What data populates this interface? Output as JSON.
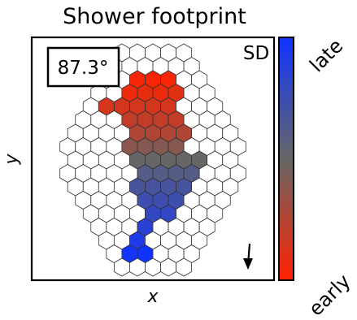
{
  "chart_data": {
    "type": "heatmap",
    "title": "Shower footprint",
    "xlabel": "x",
    "ylabel": "y",
    "detector_label": "SD",
    "zenith_angle": "87.3°",
    "arrow_icon": "down-arrow-icon",
    "colorbar": {
      "low_label": "early",
      "high_label": "late",
      "colors": [
        "#ff2200",
        "#666666",
        "#1133ff"
      ]
    },
    "grid_row_lengths": [
      5,
      6,
      7,
      8,
      9,
      10,
      11,
      12,
      11,
      12,
      11,
      10,
      9,
      8,
      7,
      6,
      5
    ],
    "hits": [
      {
        "row": 2,
        "col": 2,
        "t": 0.03
      },
      {
        "row": 2,
        "col": 3,
        "t": 0.01
      },
      {
        "row": 2,
        "col": 4,
        "t": 0.03
      },
      {
        "row": 3,
        "col": 2,
        "t": 0.06
      },
      {
        "row": 3,
        "col": 3,
        "t": 0.08
      },
      {
        "row": 3,
        "col": 4,
        "t": 0.06
      },
      {
        "row": 3,
        "col": 5,
        "t": 0.1
      },
      {
        "row": 4,
        "col": 1,
        "t": 0.14
      },
      {
        "row": 4,
        "col": 2,
        "t": 0.14
      },
      {
        "row": 4,
        "col": 3,
        "t": 0.14
      },
      {
        "row": 4,
        "col": 4,
        "t": 0.14
      },
      {
        "row": 4,
        "col": 5,
        "t": 0.14
      },
      {
        "row": 5,
        "col": 3,
        "t": 0.2
      },
      {
        "row": 5,
        "col": 4,
        "t": 0.2
      },
      {
        "row": 5,
        "col": 5,
        "t": 0.2
      },
      {
        "row": 5,
        "col": 6,
        "t": 0.2
      },
      {
        "row": 6,
        "col": 4,
        "t": 0.26
      },
      {
        "row": 6,
        "col": 5,
        "t": 0.26
      },
      {
        "row": 6,
        "col": 6,
        "t": 0.26
      },
      {
        "row": 6,
        "col": 7,
        "t": 0.26
      },
      {
        "row": 7,
        "col": 4,
        "t": 0.38
      },
      {
        "row": 7,
        "col": 5,
        "t": 0.4
      },
      {
        "row": 7,
        "col": 6,
        "t": 0.4
      },
      {
        "row": 7,
        "col": 7,
        "t": 0.4
      },
      {
        "row": 8,
        "col": 4,
        "t": 0.5
      },
      {
        "row": 8,
        "col": 5,
        "t": 0.5
      },
      {
        "row": 8,
        "col": 6,
        "t": 0.5
      },
      {
        "row": 8,
        "col": 7,
        "t": 0.5
      },
      {
        "row": 8,
        "col": 8,
        "t": 0.5
      },
      {
        "row": 9,
        "col": 5,
        "t": 0.6
      },
      {
        "row": 9,
        "col": 6,
        "t": 0.6
      },
      {
        "row": 9,
        "col": 7,
        "t": 0.6
      },
      {
        "row": 9,
        "col": 8,
        "t": 0.6
      },
      {
        "row": 10,
        "col": 4,
        "t": 0.68
      },
      {
        "row": 10,
        "col": 5,
        "t": 0.68
      },
      {
        "row": 10,
        "col": 6,
        "t": 0.68
      },
      {
        "row": 10,
        "col": 7,
        "t": 0.68
      },
      {
        "row": 11,
        "col": 4,
        "t": 0.74
      },
      {
        "row": 11,
        "col": 5,
        "t": 0.74
      },
      {
        "row": 11,
        "col": 6,
        "t": 0.74
      },
      {
        "row": 12,
        "col": 4,
        "t": 0.8
      },
      {
        "row": 12,
        "col": 5,
        "t": 0.8
      },
      {
        "row": 13,
        "col": 3,
        "t": 0.86
      },
      {
        "row": 14,
        "col": 2,
        "t": 0.92
      },
      {
        "row": 15,
        "col": 1,
        "t": 0.99
      },
      {
        "row": 15,
        "col": 2,
        "t": 1.0
      }
    ]
  }
}
